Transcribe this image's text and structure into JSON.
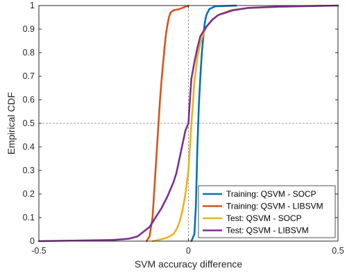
{
  "chart_data": {
    "type": "line",
    "title": "",
    "xlabel": "SVM accuracy difference",
    "ylabel": "Empirical CDF",
    "xlim": [
      -0.5,
      0.5
    ],
    "ylim": [
      0,
      1
    ],
    "xticks": [
      -0.5,
      0,
      0.5
    ],
    "xtick_labels": [
      "-0.5",
      "0",
      "0.5"
    ],
    "yticks": [
      0,
      0.1,
      0.2,
      0.3,
      0.4,
      0.5,
      0.6,
      0.7,
      0.8,
      0.9,
      1
    ],
    "ytick_labels": [
      "0",
      "0.1",
      "0.2",
      "0.3",
      "0.4",
      "0.5",
      "0.6",
      "0.7",
      "0.8",
      "0.9",
      "1"
    ],
    "grid": false,
    "reference_lines": [
      {
        "orientation": "vertical",
        "value": 0,
        "style": "dashed"
      },
      {
        "orientation": "horizontal",
        "value": 0.5,
        "style": "dashed"
      }
    ],
    "legend_position": "bottom-right",
    "series": [
      {
        "name": "Training: QSVM - SOCP",
        "color": "#0072BD",
        "points": [
          [
            0.01,
            0
          ],
          [
            0.02,
            0.03
          ],
          [
            0.025,
            0.15
          ],
          [
            0.03,
            0.4
          ],
          [
            0.035,
            0.58
          ],
          [
            0.04,
            0.7
          ],
          [
            0.045,
            0.8
          ],
          [
            0.05,
            0.87
          ],
          [
            0.055,
            0.93
          ],
          [
            0.06,
            0.96
          ],
          [
            0.07,
            0.985
          ],
          [
            0.09,
            0.997
          ],
          [
            0.16,
            1
          ]
        ]
      },
      {
        "name": "Training: QSVM - LIBSVM",
        "color": "#D95319",
        "points": [
          [
            -0.14,
            0
          ],
          [
            -0.13,
            0.02
          ],
          [
            -0.12,
            0.1
          ],
          [
            -0.115,
            0.2
          ],
          [
            -0.11,
            0.3
          ],
          [
            -0.105,
            0.4
          ],
          [
            -0.1,
            0.5
          ],
          [
            -0.095,
            0.6
          ],
          [
            -0.09,
            0.68
          ],
          [
            -0.085,
            0.75
          ],
          [
            -0.08,
            0.82
          ],
          [
            -0.075,
            0.88
          ],
          [
            -0.07,
            0.92
          ],
          [
            -0.065,
            0.95
          ],
          [
            -0.06,
            0.97
          ],
          [
            -0.05,
            0.98
          ],
          [
            -0.03,
            0.985
          ],
          [
            -0.01,
            0.995
          ],
          [
            0,
            1
          ]
        ]
      },
      {
        "name": "Test: QSVM - SOCP",
        "color": "#EDB120",
        "points": [
          [
            -0.12,
            0
          ],
          [
            -0.1,
            0.005
          ],
          [
            -0.07,
            0.015
          ],
          [
            -0.05,
            0.03
          ],
          [
            -0.04,
            0.05
          ],
          [
            -0.03,
            0.08
          ],
          [
            -0.02,
            0.13
          ],
          [
            -0.01,
            0.2
          ],
          [
            0,
            0.3
          ],
          [
            0.005,
            0.4
          ],
          [
            0.01,
            0.5
          ],
          [
            0.015,
            0.58
          ],
          [
            0.02,
            0.68
          ],
          [
            0.03,
            0.78
          ],
          [
            0.04,
            0.84
          ],
          [
            0.05,
            0.88
          ],
          [
            0.06,
            0.91
          ],
          [
            0.08,
            0.94
          ],
          [
            0.1,
            0.96
          ],
          [
            0.14,
            0.98
          ],
          [
            0.2,
            0.99
          ],
          [
            0.3,
            0.995
          ],
          [
            0.45,
            1
          ]
        ]
      },
      {
        "name": "Test: QSVM - LIBSVM",
        "color": "#7E2F8E",
        "points": [
          [
            -0.5,
            0
          ],
          [
            -0.25,
            0.005
          ],
          [
            -0.2,
            0.01
          ],
          [
            -0.17,
            0.02
          ],
          [
            -0.15,
            0.04
          ],
          [
            -0.13,
            0.06
          ],
          [
            -0.11,
            0.1
          ],
          [
            -0.09,
            0.14
          ],
          [
            -0.07,
            0.19
          ],
          [
            -0.05,
            0.25
          ],
          [
            -0.04,
            0.29
          ],
          [
            -0.03,
            0.35
          ],
          [
            -0.02,
            0.41
          ],
          [
            -0.01,
            0.47
          ],
          [
            0,
            0.5
          ],
          [
            0.003,
            0.56
          ],
          [
            0.006,
            0.62
          ],
          [
            0.01,
            0.69
          ],
          [
            0.02,
            0.76
          ],
          [
            0.03,
            0.82
          ],
          [
            0.04,
            0.87
          ],
          [
            0.06,
            0.91
          ],
          [
            0.08,
            0.94
          ],
          [
            0.1,
            0.96
          ],
          [
            0.15,
            0.98
          ],
          [
            0.2,
            0.99
          ],
          [
            0.3,
            0.995
          ],
          [
            0.5,
            1
          ]
        ]
      }
    ]
  }
}
